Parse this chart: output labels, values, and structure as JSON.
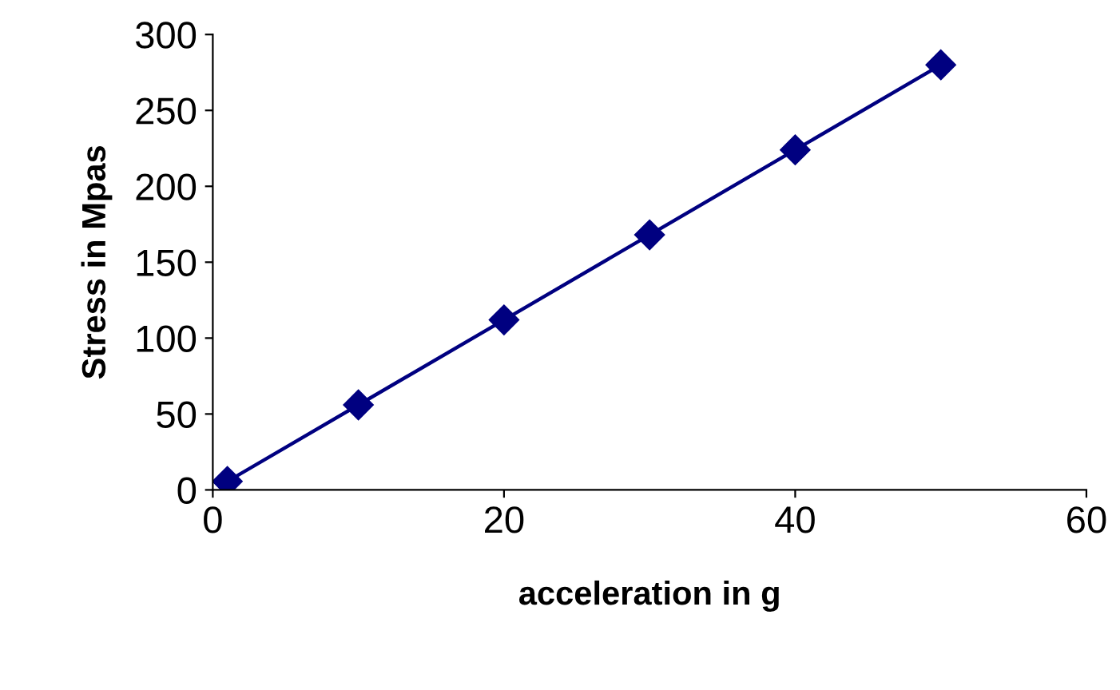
{
  "chart_data": {
    "type": "line",
    "xlabel": "acceleration in g",
    "ylabel": "Stress in Mpas",
    "x": [
      1,
      10,
      20,
      30,
      40,
      50
    ],
    "series": [
      {
        "color": "#000080",
        "values": [
          5.6,
          56,
          112,
          168,
          224,
          280
        ]
      }
    ],
    "xlim": [
      0,
      60
    ],
    "xticks": [
      0,
      20,
      40,
      60
    ],
    "ylim": [
      0,
      300
    ],
    "yticks": [
      0,
      50,
      100,
      150,
      200,
      250,
      300
    ],
    "grid": false,
    "legend": false,
    "marker": "diamond",
    "line_style": "solid"
  }
}
